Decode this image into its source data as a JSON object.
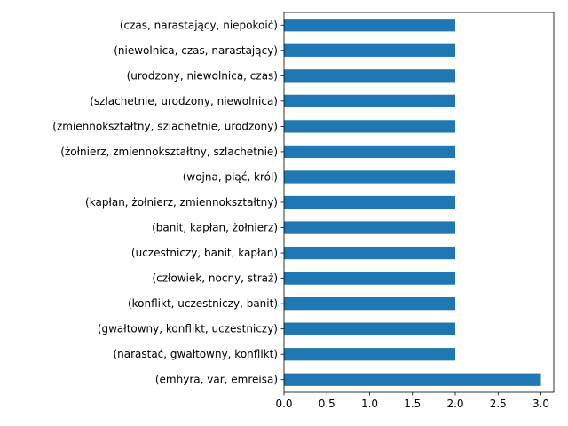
{
  "chart_data": {
    "type": "bar",
    "orientation": "horizontal",
    "title": "",
    "xlabel": "",
    "ylabel": "",
    "xlim": [
      0,
      3.15
    ],
    "xticks": [
      "0.0",
      "0.5",
      "1.0",
      "1.5",
      "2.0",
      "2.5",
      "3.0"
    ],
    "grid": false,
    "bar_color": "#1f77b4",
    "categories": [
      "(emhyra, var, emreisa)",
      "(narastać, gwałtowny, konflikt)",
      "(gwałtowny, konflikt, uczestniczy)",
      "(konflikt, uczestniczy, banit)",
      "(człowiek, nocny, straż)",
      "(uczestniczy, banit, kapłan)",
      "(banit, kapłan, żołnierz)",
      "(kapłan, żołnierz, zmiennokształtny)",
      "(wojna, piąć, król)",
      "(żołnierz, zmiennokształtny, szlachetnie)",
      "(zmiennokształtny, szlachetnie, urodzony)",
      "(szlachetnie, urodzony, niewolnica)",
      "(urodzony, niewolnica, czas)",
      "(niewolnica, czas, narastający)",
      "(czas, narastający, niepokoić)"
    ],
    "values": [
      3,
      2,
      2,
      2,
      2,
      2,
      2,
      2,
      2,
      2,
      2,
      2,
      2,
      2,
      2
    ]
  }
}
